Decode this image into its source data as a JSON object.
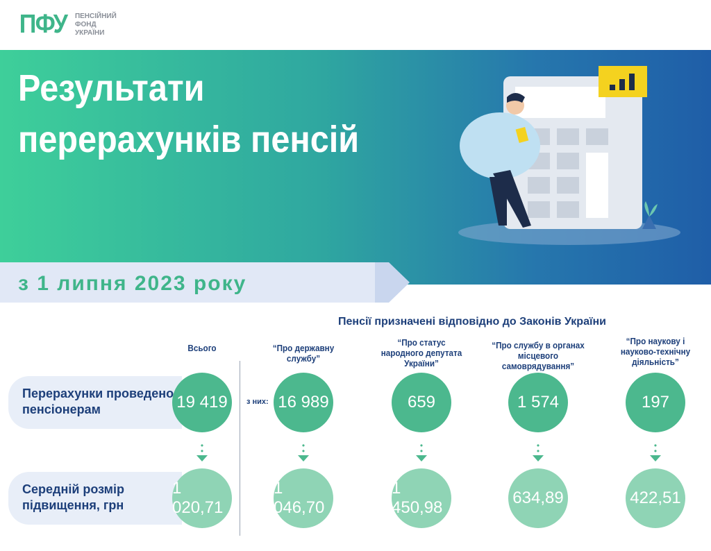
{
  "logo": {
    "mark": "ПФУ",
    "line1": "ПЕНСІЙНИЙ",
    "line2": "ФОНД",
    "line3": "УКРАЇНИ"
  },
  "header": {
    "title_line1": "Результати",
    "title_line2": "перерахунків пенсій",
    "subtitle": "з 1 липня 2023 року"
  },
  "colors": {
    "green": "#4cb88e",
    "light_green": "#8fd4b5",
    "navy": "#1d3f7a",
    "gradient_start": "#3ecf9a",
    "gradient_end": "#1f5ea8"
  },
  "table": {
    "laws_title": "Пенсії призначені відповідно до Законів України",
    "row_labels": [
      "Перерахунки проведено пенсіонерам",
      "Середній розмір підвищення, грн"
    ],
    "of_them": "з них:",
    "columns": [
      {
        "header": "Всього",
        "count": "19 419",
        "avg": "1 020,71"
      },
      {
        "header": "“Про державну службу”",
        "count": "16 989",
        "avg": "1 046,70"
      },
      {
        "header": "“Про статус народного депутата України”",
        "count": "659",
        "avg": "1 450,98"
      },
      {
        "header": "“Про службу в органах місцевого самоврядування”",
        "count": "1 574",
        "avg": "634,89"
      },
      {
        "header": "“Про наукову і науково-технічну діяльність”",
        "count": "197",
        "avg": "422,51"
      }
    ]
  }
}
